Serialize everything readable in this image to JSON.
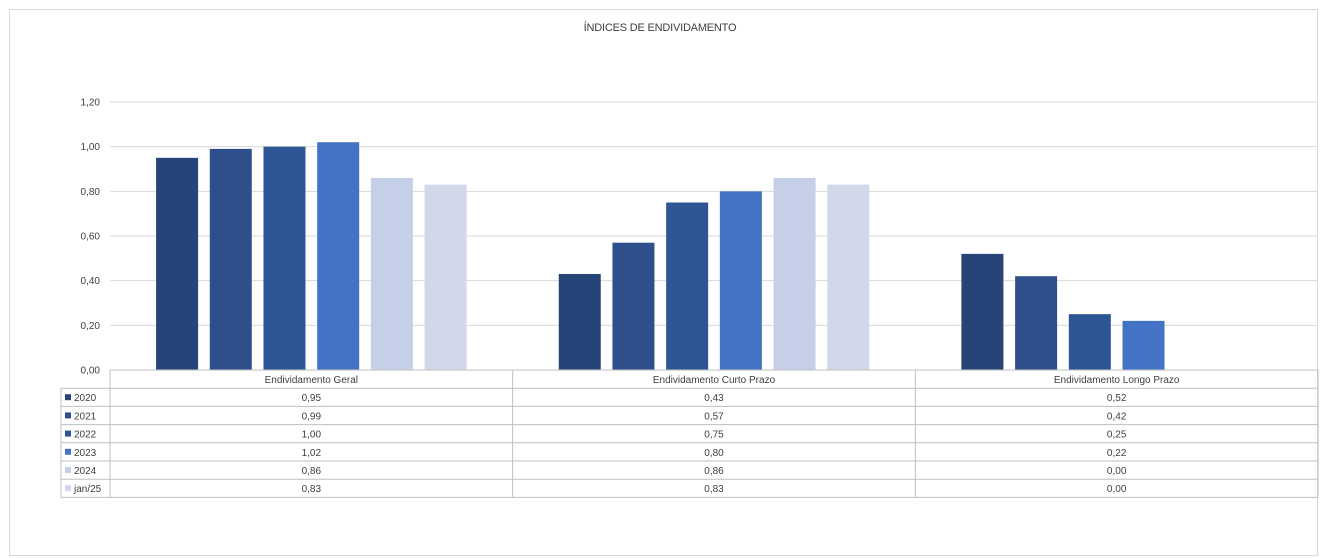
{
  "chart_data": {
    "type": "bar",
    "title": "ÍNDICES DE ENDIVIDAMENTO",
    "categories": [
      "Endividamento Geral",
      "Endividamento Curto Prazo",
      "Endividamento Longo Prazo"
    ],
    "series": [
      {
        "name": "2020",
        "color": "#264478",
        "values": [
          0.95,
          0.43,
          0.52
        ],
        "labels": [
          "0,95",
          "0,43",
          "0,52"
        ]
      },
      {
        "name": "2021",
        "color": "#2f4f8c",
        "values": [
          0.99,
          0.57,
          0.42
        ],
        "labels": [
          "0,99",
          "0,57",
          "0,42"
        ]
      },
      {
        "name": "2022",
        "color": "#2e5594",
        "values": [
          1.0,
          0.75,
          0.25
        ],
        "labels": [
          "1,00",
          "0,75",
          "0,25"
        ]
      },
      {
        "name": "2023",
        "color": "#4472c4",
        "values": [
          1.02,
          0.8,
          0.22
        ],
        "labels": [
          "1,02",
          "0,80",
          "0,22"
        ]
      },
      {
        "name": "2024",
        "color": "#c5cfe7",
        "values": [
          0.86,
          0.86,
          0.0
        ],
        "labels": [
          "0,86",
          "0,86",
          "0,00"
        ]
      },
      {
        "name": "jan/25",
        "color": "#d0d8ea",
        "values": [
          0.83,
          0.83,
          0.0
        ],
        "labels": [
          "0,83",
          "0,83",
          "0,00"
        ]
      }
    ],
    "yticks": [
      "0,00",
      "0,20",
      "0,40",
      "0,60",
      "0,80",
      "1,00",
      "1,20"
    ],
    "ylim": [
      0,
      1.2
    ],
    "grid": true,
    "legend": "data-table"
  }
}
